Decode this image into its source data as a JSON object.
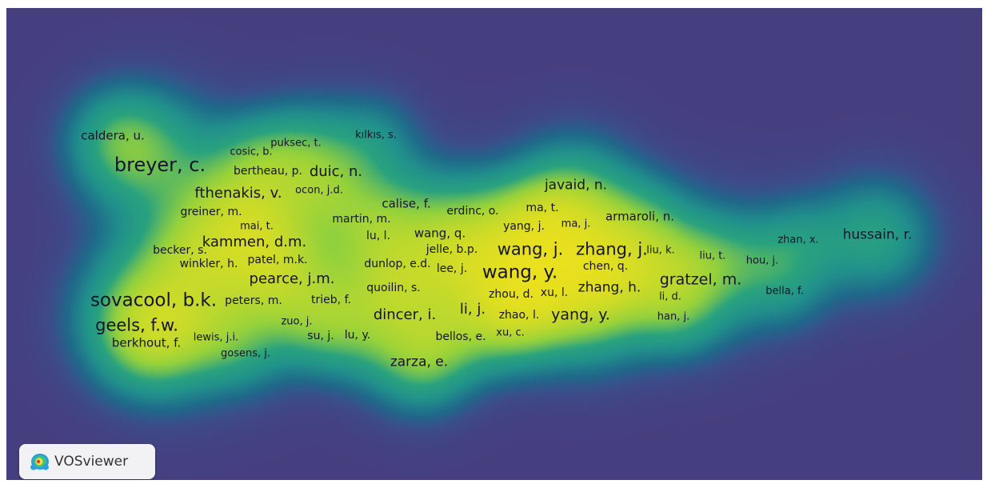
{
  "app": {
    "name": "VOSviewer"
  },
  "colors": {
    "background": "#453f80",
    "low_density": "#1f6a8a",
    "mid_density": "#2aa37f",
    "high_density": "#f4e21a",
    "label": "#17142e"
  },
  "map": {
    "type": "density visualization",
    "terms": [
      {
        "label": "breyer, c.",
        "w": 1.0
      },
      {
        "label": "sovacool, b.k.",
        "w": 0.95
      },
      {
        "label": "wang, y.",
        "w": 0.92
      },
      {
        "label": "wang, j.",
        "w": 0.8
      },
      {
        "label": "zhang, j.",
        "w": 0.78
      },
      {
        "label": "geels, f.w.",
        "w": 0.78
      },
      {
        "label": "gratzel, m.",
        "w": 0.65
      },
      {
        "label": "yang, y.",
        "w": 0.65
      },
      {
        "label": "li, j.",
        "w": 0.62
      },
      {
        "label": "pearce, j.m.",
        "w": 0.62
      },
      {
        "label": "dincer, i.",
        "w": 0.62
      },
      {
        "label": "duic, n.",
        "w": 0.6
      },
      {
        "label": "fthenakis, v.",
        "w": 0.6
      },
      {
        "label": "kammen, d.m.",
        "w": 0.58
      },
      {
        "label": "javaid, n.",
        "w": 0.55
      },
      {
        "label": "hussain, r.",
        "w": 0.55
      },
      {
        "label": "zhang, h.",
        "w": 0.55
      },
      {
        "label": "zarza, e.",
        "w": 0.5
      },
      {
        "label": "caldera, u.",
        "w": 0.42
      },
      {
        "label": "calise, f.",
        "w": 0.42
      },
      {
        "label": "wang, q.",
        "w": 0.42
      },
      {
        "label": "berkhout, f.",
        "w": 0.4
      },
      {
        "label": "armaroli, n.",
        "w": 0.38
      },
      {
        "label": "greiner, m.",
        "w": 0.36
      },
      {
        "label": "bertheau, p.",
        "w": 0.35
      },
      {
        "label": "trieb, f.",
        "w": 0.35
      },
      {
        "label": "dunlop, e.d.",
        "w": 0.35
      },
      {
        "label": "lee, j.",
        "w": 0.35
      },
      {
        "label": "yang, j.",
        "w": 0.35
      },
      {
        "label": "quoilin, s.",
        "w": 0.34
      },
      {
        "label": "lu, l.",
        "w": 0.32
      },
      {
        "label": "patel, m.k.",
        "w": 0.32
      },
      {
        "label": "winkler, h.",
        "w": 0.32
      },
      {
        "label": "becker, s.",
        "w": 0.32
      },
      {
        "label": "martin, m.",
        "w": 0.3
      },
      {
        "label": "erdinc, o.",
        "w": 0.3
      },
      {
        "label": "ma, t.",
        "w": 0.3
      },
      {
        "label": "jelle, b.p.",
        "w": 0.3
      },
      {
        "label": "peters, m.",
        "w": 0.3
      },
      {
        "label": "puksec, t.",
        "w": 0.28
      },
      {
        "label": "kılkıs, s.",
        "w": 0.28
      },
      {
        "label": "cosic, b.",
        "w": 0.28
      },
      {
        "label": "ocon, j.d.",
        "w": 0.28
      },
      {
        "label": "mai, t.",
        "w": 0.28
      },
      {
        "label": "ma, j.",
        "w": 0.28
      },
      {
        "label": "liu, k.",
        "w": 0.28
      },
      {
        "label": "chen, q.",
        "w": 0.3
      },
      {
        "label": "liu, t.",
        "w": 0.28
      },
      {
        "label": "hou, j.",
        "w": 0.28
      },
      {
        "label": "zhan, x.",
        "w": 0.26
      },
      {
        "label": "bella, f.",
        "w": 0.28
      },
      {
        "label": "li, d.",
        "w": 0.28
      },
      {
        "label": "han, j.",
        "w": 0.28
      },
      {
        "label": "zhou, d.",
        "w": 0.3
      },
      {
        "label": "xu, l.",
        "w": 0.3
      },
      {
        "label": "zhao, l.",
        "w": 0.3
      },
      {
        "label": "xu, c.",
        "w": 0.28
      },
      {
        "label": "bellos, e.",
        "w": 0.3
      },
      {
        "label": "zuo, j.",
        "w": 0.28
      },
      {
        "label": "su, j.",
        "w": 0.3
      },
      {
        "label": "lu, y.",
        "w": 0.3
      },
      {
        "label": "lewis, j.i.",
        "w": 0.28
      },
      {
        "label": "gosens, j.",
        "w": 0.28
      }
    ]
  }
}
